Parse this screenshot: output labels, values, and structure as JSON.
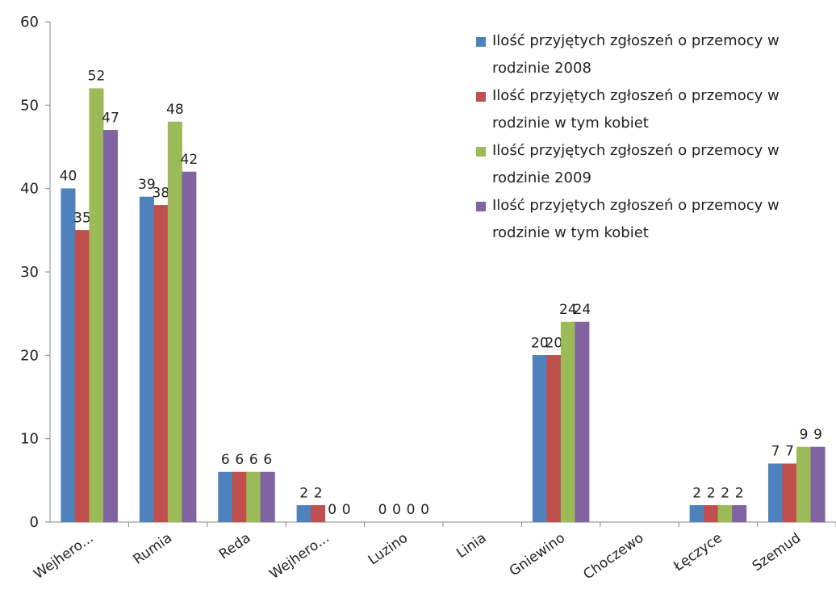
{
  "chart_data": {
    "type": "bar",
    "categories": [
      "Wejhero...",
      "Rumia",
      "Reda",
      "Wejhero...",
      "Luzino",
      "Linia",
      "Gniewino",
      "Choczewo",
      "Łęczyce",
      "Szemud"
    ],
    "series": [
      {
        "name": "Ilość przyjętych zgłoszeń o przemocy w rodzinie 2008",
        "color": "#4f81bd",
        "values": [
          40,
          39,
          6,
          2,
          0,
          null,
          20,
          null,
          2,
          7
        ]
      },
      {
        "name": "Ilość przyjętych zgłoszeń o przemocy w rodzinie w tym kobiet",
        "color": "#c0504d",
        "values": [
          35,
          38,
          6,
          2,
          0,
          null,
          20,
          null,
          2,
          7
        ]
      },
      {
        "name": "Ilość przyjętych zgłoszeń o przemocy w rodzinie 2009",
        "color": "#9bbb59",
        "values": [
          52,
          48,
          6,
          0,
          0,
          null,
          24,
          null,
          2,
          9
        ]
      },
      {
        "name": "Ilość przyjętych zgłoszeń o przemocy w rodzinie w tym kobiet",
        "color": "#8064a2",
        "values": [
          47,
          42,
          6,
          0,
          0,
          null,
          24,
          null,
          2,
          9
        ]
      }
    ],
    "ylim": [
      0,
      60
    ],
    "yticks": [
      0,
      10,
      20,
      30,
      40,
      50,
      60
    ],
    "legend": "top-right"
  }
}
